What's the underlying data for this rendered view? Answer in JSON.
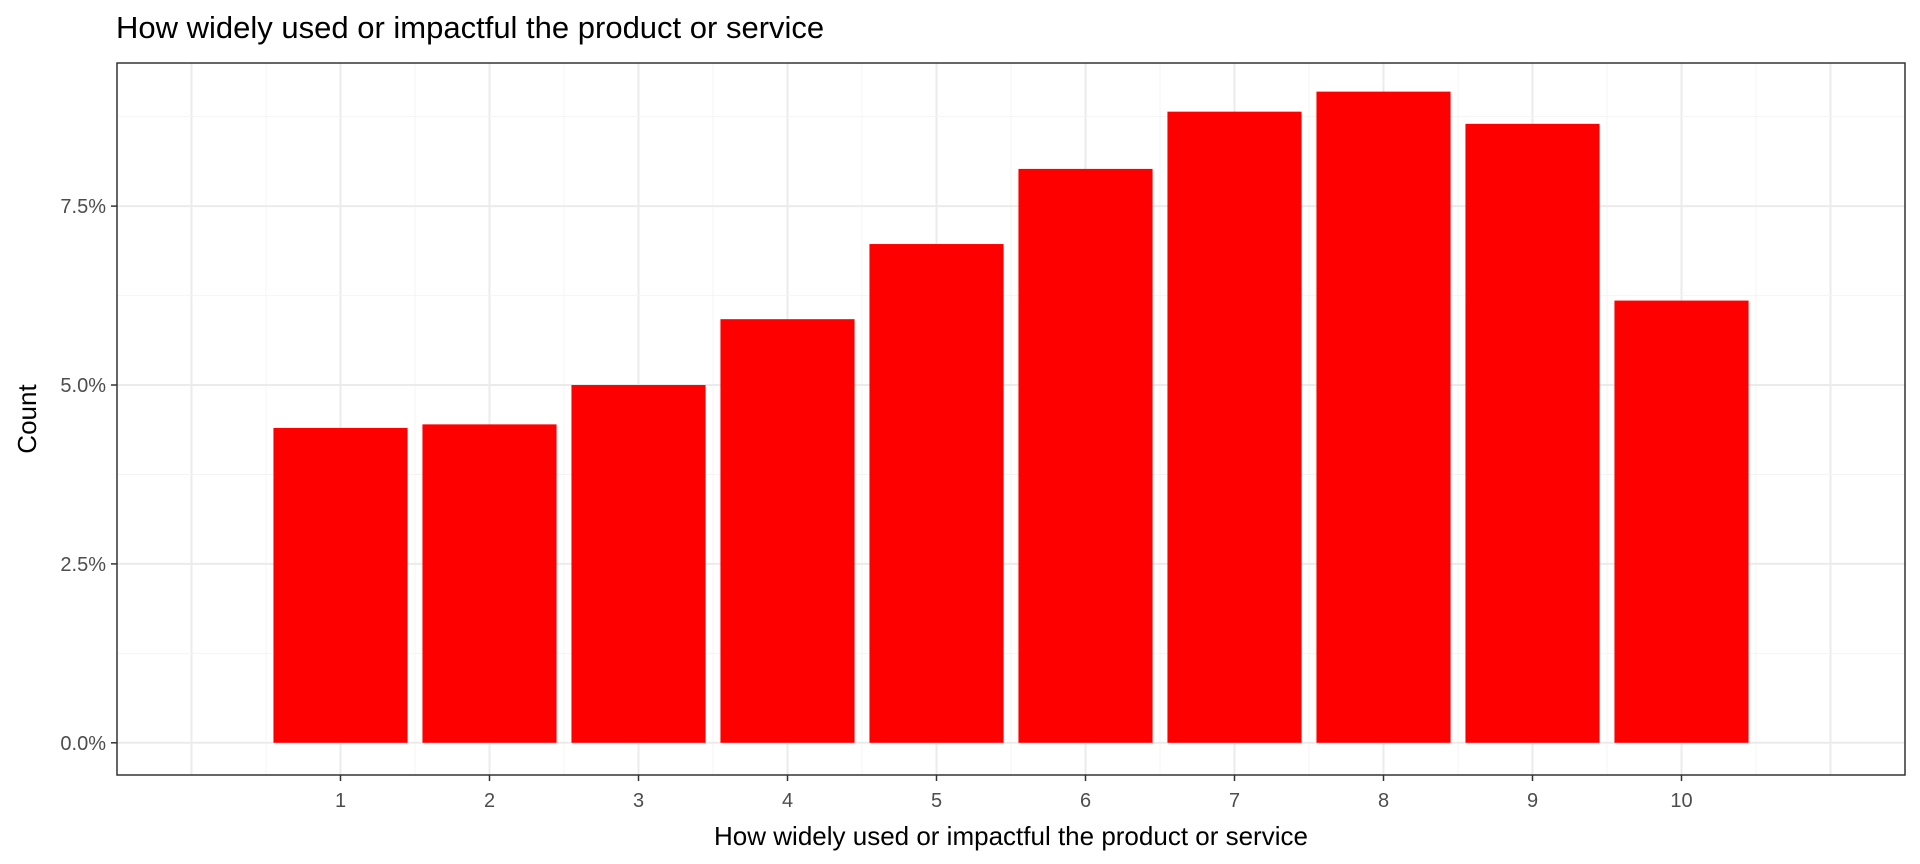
{
  "chart_data": {
    "type": "bar",
    "title": "How widely used or impactful the product or service",
    "xlabel": "How widely used or impactful the product or service",
    "ylabel": "Count",
    "categories": [
      "1",
      "2",
      "3",
      "4",
      "5",
      "6",
      "7",
      "8",
      "9",
      "10"
    ],
    "values": [
      4.4,
      4.45,
      5.0,
      5.92,
      6.97,
      8.02,
      8.82,
      9.1,
      8.65,
      6.18
    ],
    "value_format": "percent",
    "x_range": [
      -0.5,
      11.5
    ],
    "ylim": [
      -0.45,
      9.5
    ],
    "y_ticks": [
      0.0,
      2.5,
      5.0,
      7.5
    ],
    "y_tick_labels": [
      "0.0%",
      "2.5%",
      "5.0%",
      "7.5%"
    ],
    "bar_color": "#FF0000",
    "grid": true,
    "legend": "none"
  }
}
